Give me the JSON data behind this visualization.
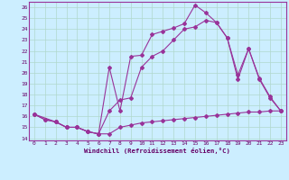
{
  "xlabel": "Windchill (Refroidissement éolien,°C)",
  "bg_color": "#cceeff",
  "line_color": "#993399",
  "grid_color": "#aaddcc",
  "xlim": [
    -0.5,
    23.5
  ],
  "ylim": [
    13.8,
    26.5
  ],
  "xticks": [
    0,
    1,
    2,
    3,
    4,
    5,
    6,
    7,
    8,
    9,
    10,
    11,
    12,
    13,
    14,
    15,
    16,
    17,
    18,
    19,
    20,
    21,
    22,
    23
  ],
  "yticks": [
    14,
    15,
    16,
    17,
    18,
    19,
    20,
    21,
    22,
    23,
    24,
    25,
    26
  ],
  "line1_x": [
    0,
    1,
    2,
    3,
    4,
    5,
    6,
    7,
    8,
    9,
    10,
    11,
    12,
    13,
    14,
    15,
    16,
    17,
    18,
    19,
    20,
    21,
    22,
    23
  ],
  "line1_y": [
    16.2,
    15.7,
    15.5,
    15.0,
    15.0,
    14.6,
    14.4,
    14.4,
    15.0,
    15.2,
    15.4,
    15.5,
    15.6,
    15.7,
    15.8,
    15.9,
    16.0,
    16.1,
    16.2,
    16.3,
    16.4,
    16.4,
    16.5,
    16.5
  ],
  "line2_x": [
    0,
    1,
    2,
    3,
    4,
    5,
    6,
    7,
    8,
    9,
    10,
    11,
    12,
    13,
    14,
    15,
    16,
    17,
    18,
    19,
    20,
    21,
    22,
    23
  ],
  "line2_y": [
    16.2,
    15.7,
    15.5,
    15.0,
    15.0,
    14.6,
    14.4,
    16.5,
    17.5,
    17.7,
    20.5,
    21.5,
    22.0,
    23.0,
    24.0,
    24.2,
    24.8,
    24.6,
    23.2,
    19.8,
    22.2,
    19.5,
    17.8,
    16.5
  ],
  "line3_x": [
    0,
    2,
    3,
    4,
    5,
    6,
    7,
    8,
    9,
    10,
    11,
    12,
    13,
    14,
    15,
    16,
    17,
    18,
    19,
    20,
    21,
    22,
    23
  ],
  "line3_y": [
    16.2,
    15.5,
    15.0,
    15.0,
    14.6,
    14.4,
    20.5,
    16.5,
    21.5,
    21.6,
    23.5,
    23.8,
    24.1,
    24.5,
    26.2,
    25.5,
    24.6,
    23.2,
    19.4,
    22.2,
    19.4,
    17.7,
    16.5
  ]
}
